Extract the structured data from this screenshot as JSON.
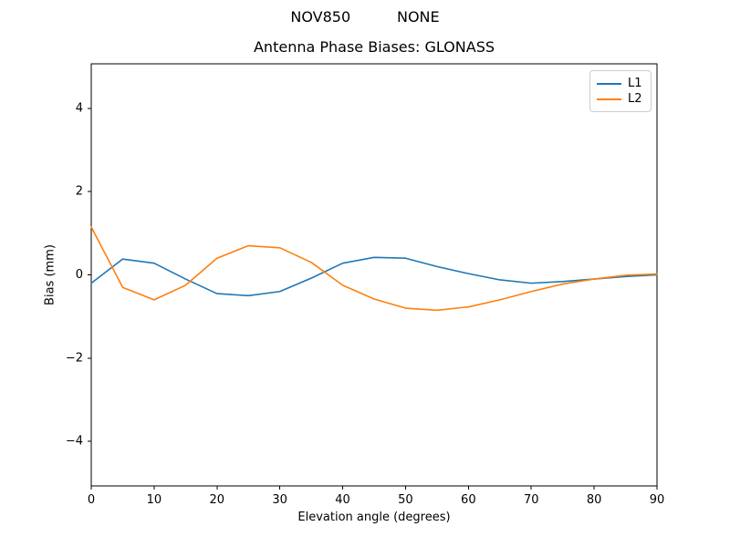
{
  "chart_data": {
    "type": "line",
    "suptitle": "NOV850          NONE",
    "title": "Antenna Phase Biases: GLONASS",
    "xlabel": "Elevation angle (degrees)",
    "ylabel": "Bias (mm)",
    "xlim": [
      0,
      90
    ],
    "ylim": [
      -5.07,
      5.07
    ],
    "xticks": [
      0,
      10,
      20,
      30,
      40,
      50,
      60,
      70,
      80,
      90
    ],
    "yticks": [
      -4,
      -2,
      0,
      2,
      4
    ],
    "grid": false,
    "legend": {
      "position": "upper right",
      "entries": [
        "L1",
        "L2"
      ]
    },
    "x": [
      0,
      5,
      10,
      15,
      20,
      25,
      30,
      35,
      40,
      45,
      50,
      55,
      60,
      65,
      70,
      75,
      80,
      85,
      90
    ],
    "series": [
      {
        "name": "L1",
        "color": "#1f77b4",
        "values": [
          -0.2,
          0.38,
          0.28,
          -0.1,
          -0.45,
          -0.5,
          -0.4,
          -0.08,
          0.28,
          0.42,
          0.4,
          0.2,
          0.03,
          -0.12,
          -0.2,
          -0.16,
          -0.1,
          -0.04,
          0.0
        ]
      },
      {
        "name": "L2",
        "color": "#ff7f0e",
        "values": [
          1.15,
          -0.3,
          -0.6,
          -0.25,
          0.4,
          0.7,
          0.65,
          0.3,
          -0.25,
          -0.58,
          -0.8,
          -0.85,
          -0.77,
          -0.6,
          -0.4,
          -0.22,
          -0.1,
          -0.01,
          0.02
        ]
      }
    ]
  }
}
